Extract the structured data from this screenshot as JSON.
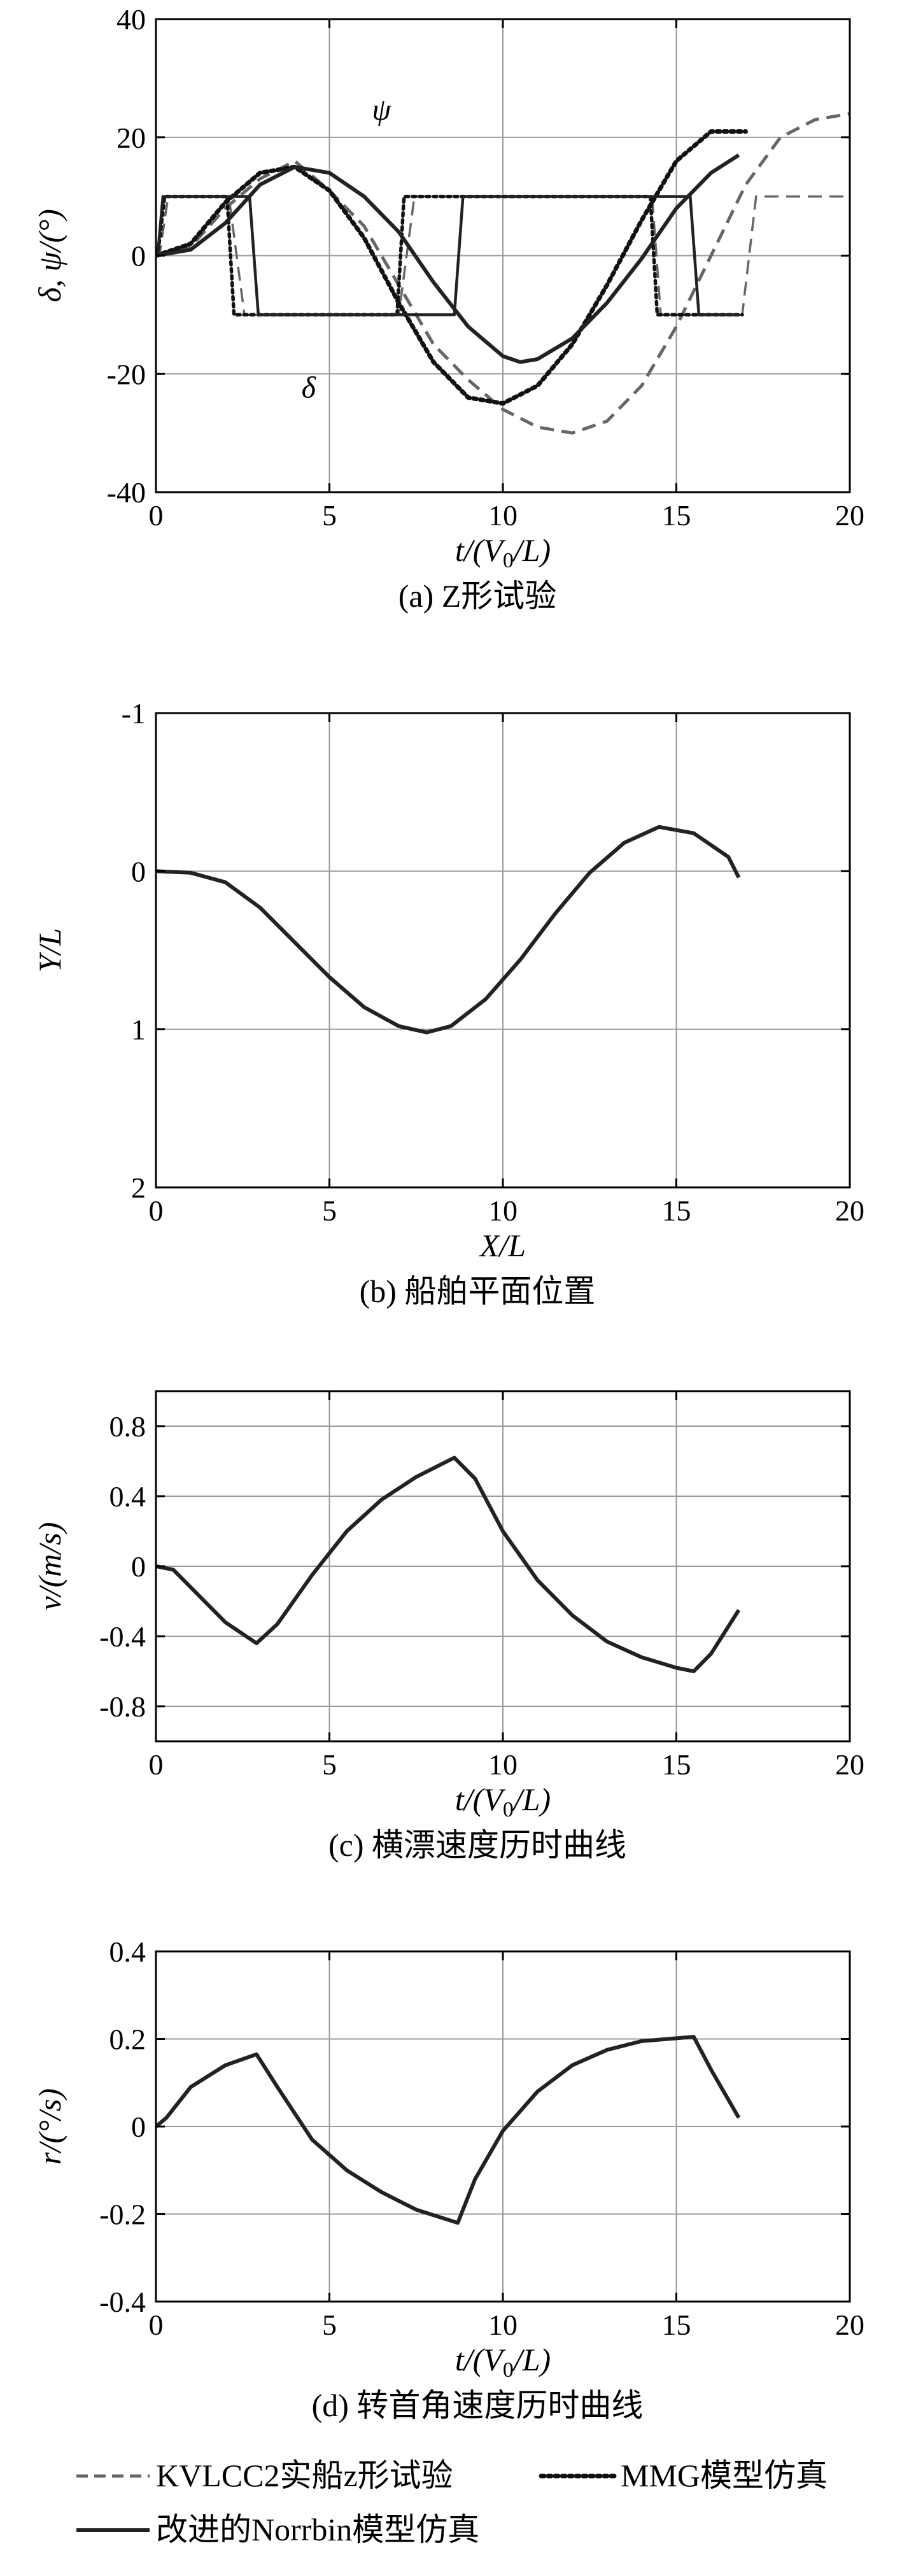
{
  "chart_data": [
    {
      "type": "line",
      "caption": "(a) Z形试验",
      "xlabel": "t/(V0/L)",
      "ylabel": "δ, ψ/(°)",
      "xlim": [
        0,
        20
      ],
      "ylim": [
        -40,
        40
      ],
      "xticks": [
        "0",
        "5",
        "10",
        "15",
        "20"
      ],
      "yticks": [
        "40",
        "20",
        "0",
        "-20",
        "-40"
      ],
      "grid": true,
      "annotations": [
        {
          "text": "ψ",
          "x": 6.5,
          "y": 23
        },
        {
          "text": "δ",
          "x": 4.4,
          "y": -24
        }
      ],
      "series": [
        {
          "name": "KVLCC2实船z形试验",
          "style": "dashed",
          "color": "#666666",
          "qty": "psi",
          "x": [
            0,
            1,
            2,
            3,
            4,
            5,
            6,
            7,
            8,
            9,
            10,
            11,
            12,
            13,
            14,
            15,
            16,
            17,
            18,
            19,
            20
          ],
          "y": [
            0,
            1.5,
            8,
            13,
            16,
            11,
            5,
            -5,
            -15,
            -21,
            -26,
            -29,
            -30,
            -28,
            -22,
            -12,
            0,
            12,
            20,
            23,
            24
          ]
        },
        {
          "name": "KVLCC2实船z形试验",
          "style": "dashed",
          "color": "#666666",
          "qty": "delta",
          "x": [
            0,
            0.1,
            0.35,
            2.1,
            2.55,
            7.0,
            7.45,
            14.3,
            14.55,
            16.9,
            17.3,
            20
          ],
          "y": [
            0,
            0,
            10,
            10,
            -10,
            -10,
            10,
            10,
            -10,
            -10,
            10,
            10
          ]
        },
        {
          "name": "MMG模型仿真",
          "style": "dotted",
          "color": "#111111",
          "qty": "psi",
          "x": [
            0,
            1,
            2,
            3,
            4,
            5,
            6,
            7,
            8,
            9,
            10,
            11,
            12,
            13,
            14,
            15,
            16,
            17
          ],
          "y": [
            0,
            2,
            9,
            14,
            15,
            11,
            3,
            -8,
            -18,
            -24,
            -25,
            -22,
            -15,
            -5,
            6,
            16,
            21,
            21
          ]
        },
        {
          "name": "MMG模型仿真",
          "style": "dotted",
          "color": "#111111",
          "qty": "delta",
          "x": [
            0,
            0.05,
            0.25,
            2.05,
            2.25,
            6.95,
            7.15,
            14.25,
            14.45,
            16.9
          ],
          "y": [
            0,
            0,
            10,
            10,
            -10,
            -10,
            10,
            10,
            -10,
            -10
          ]
        },
        {
          "name": "改进的Norrbin模型仿真",
          "style": "solid",
          "color": "#222222",
          "qty": "psi",
          "x": [
            0,
            1,
            2,
            3,
            4,
            5,
            6,
            7,
            8,
            9,
            10,
            10.5,
            11,
            12,
            13,
            14,
            15,
            16,
            16.8
          ],
          "y": [
            0,
            1,
            5.5,
            12,
            15,
            14,
            10,
            4,
            -4.5,
            -12,
            -17,
            -18,
            -17.5,
            -14,
            -8,
            -0.5,
            8,
            14,
            17
          ]
        },
        {
          "name": "改进的Norrbin模型仿真",
          "style": "solid",
          "color": "#222222",
          "qty": "delta",
          "x": [
            0,
            0.05,
            0.2,
            2.7,
            2.95,
            8.6,
            8.85,
            15.4,
            15.65,
            16.8
          ],
          "y": [
            0,
            0,
            10,
            10,
            -10,
            -10,
            10,
            10,
            -10,
            -10
          ]
        }
      ]
    },
    {
      "type": "line",
      "caption": "(b) 船舶平面位置",
      "xlabel": "X/L",
      "ylabel": "Y/L",
      "xlim": [
        0,
        20
      ],
      "ylim": [
        2,
        -1
      ],
      "y_inverted": true,
      "xticks": [
        "0",
        "5",
        "10",
        "15",
        "20"
      ],
      "yticks": [
        "-1",
        "0",
        "1",
        "2"
      ],
      "grid": true,
      "series": [
        {
          "name": "改进的Norrbin模型仿真",
          "style": "solid",
          "color": "#222222",
          "x": [
            0,
            1,
            2,
            3,
            4,
            5,
            6,
            7,
            7.8,
            8.5,
            9.5,
            10.5,
            11.5,
            12.5,
            13.5,
            14.5,
            15.5,
            16.5,
            16.8
          ],
          "y": [
            0,
            0.01,
            0.07,
            0.23,
            0.45,
            0.67,
            0.86,
            0.98,
            1.02,
            0.98,
            0.81,
            0.56,
            0.27,
            0.01,
            -0.18,
            -0.28,
            -0.24,
            -0.09,
            0.04
          ]
        }
      ]
    },
    {
      "type": "line",
      "caption": "(c) 横漂速度历时曲线",
      "xlabel": "t/(V0/L)",
      "ylabel": "v/(m/s)",
      "xlim": [
        0,
        20
      ],
      "ylim": [
        -1,
        1
      ],
      "xticks": [
        "0",
        "5",
        "10",
        "15",
        "20"
      ],
      "yticks": [
        "0.8",
        "0.4",
        "0",
        "-0.4",
        "-0.8"
      ],
      "grid": true,
      "series": [
        {
          "name": "改进的Norrbin模型仿真",
          "style": "solid",
          "color": "#222222",
          "x": [
            0,
            0.5,
            1,
            2,
            2.9,
            3.5,
            4.5,
            5.5,
            6.5,
            7.5,
            8.6,
            9.2,
            10,
            11,
            12,
            13,
            14,
            15,
            15.5,
            16,
            16.8
          ],
          "y": [
            0,
            -0.02,
            -0.12,
            -0.32,
            -0.44,
            -0.33,
            -0.05,
            0.2,
            0.38,
            0.51,
            0.62,
            0.5,
            0.2,
            -0.08,
            -0.28,
            -0.43,
            -0.52,
            -0.58,
            -0.6,
            -0.5,
            -0.25
          ]
        }
      ]
    },
    {
      "type": "line",
      "caption": "(d) 转首角速度历时曲线",
      "xlabel": "t/(V0/L)",
      "ylabel": "r/(°/s)",
      "xlim": [
        0,
        20
      ],
      "ylim": [
        -0.4,
        0.4
      ],
      "xticks": [
        "0",
        "5",
        "10",
        "15",
        "20"
      ],
      "yticks": [
        "0.4",
        "0.2",
        "0",
        "-0.2",
        "-0.4"
      ],
      "grid": true,
      "series": [
        {
          "name": "改进的Norrbin模型仿真",
          "style": "solid",
          "color": "#222222",
          "x": [
            0,
            0.3,
            1,
            2,
            2.9,
            3.5,
            4.5,
            5.5,
            6.5,
            7.5,
            8.7,
            9.2,
            10,
            11,
            12,
            13,
            14,
            15.5,
            16,
            16.8
          ],
          "y": [
            0,
            0.02,
            0.09,
            0.14,
            0.165,
            0.09,
            -0.03,
            -0.1,
            -0.15,
            -0.19,
            -0.22,
            -0.12,
            -0.01,
            0.08,
            0.14,
            0.175,
            0.195,
            0.205,
            0.13,
            0.02
          ]
        }
      ]
    }
  ],
  "legend": {
    "items": [
      {
        "label": "KVLCC2实船z形试验",
        "style": "dashed",
        "color": "#666666"
      },
      {
        "label": "MMG模型仿真",
        "style": "dotted",
        "color": "#111111"
      },
      {
        "label": "改进的Norrbin模型仿真",
        "style": "solid",
        "color": "#222222"
      }
    ]
  }
}
